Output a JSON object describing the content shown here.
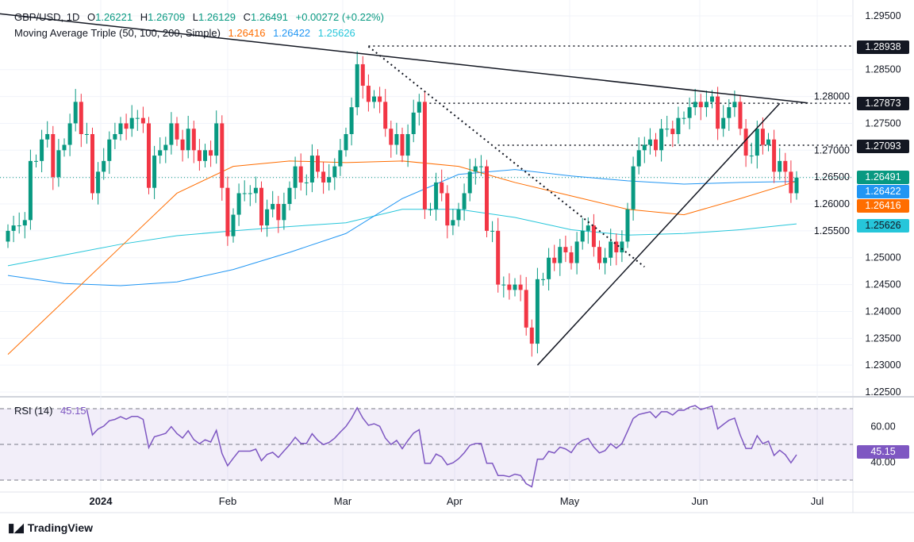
{
  "header": {
    "symbol": "GBP/USD, 1D",
    "o_label": "O",
    "o": "1.26221",
    "h_label": "H",
    "h": "1.26709",
    "l_label": "L",
    "l": "1.26129",
    "c_label": "C",
    "c": "1.26491",
    "change": "+0.00272 (+0.22%)"
  },
  "ma": {
    "title": "Moving Average Triple (50, 100, 200, Simple)",
    "v50": "1.26416",
    "v100": "1.26422",
    "v200": "1.25626",
    "c50": "#ff6d00",
    "c100": "#2196f3",
    "c200": "#26c6da"
  },
  "rsi": {
    "title": "RSI (14)",
    "value": "45.15",
    "color": "#7e57c2",
    "ticks": [
      "60.00",
      "40.00"
    ]
  },
  "price_axis": {
    "ticks": [
      "1.29500",
      "1.28500",
      "1.28000",
      "1.27500",
      "1.27000",
      "1.26500",
      "1.26000",
      "1.25500",
      "1.25000",
      "1.24500",
      "1.24000",
      "1.23500",
      "1.23000",
      "1.22500"
    ],
    "levels": {
      "l1": "1.28938",
      "l2": "1.27873",
      "l3": "1.27093"
    },
    "last": "1.26491"
  },
  "time_axis": [
    "2024",
    "Feb",
    "Mar",
    "Apr",
    "May",
    "Jun",
    "Jul"
  ],
  "colors": {
    "up": "#089981",
    "down": "#f23645"
  },
  "footer": {
    "brand": "TradingView"
  },
  "chart_data": {
    "type": "candlestick",
    "symbol": "GBP/USD",
    "interval": "1D",
    "ylim": [
      1.225,
      1.295
    ],
    "closes": [
      1.255,
      1.256,
      1.256,
      1.257,
      1.268,
      1.268,
      1.272,
      1.273,
      1.265,
      1.27,
      1.271,
      1.275,
      1.279,
      1.273,
      1.273,
      1.262,
      1.266,
      1.268,
      1.272,
      1.273,
      1.275,
      1.274,
      1.276,
      1.276,
      1.275,
      1.263,
      1.269,
      1.27,
      1.271,
      1.275,
      1.272,
      1.27,
      1.274,
      1.27,
      1.268,
      1.27,
      1.269,
      1.275,
      1.263,
      1.254,
      1.258,
      1.262,
      1.262,
      1.262,
      1.263,
      1.256,
      1.259,
      1.26,
      1.257,
      1.26,
      1.263,
      1.267,
      1.264,
      1.264,
      1.269,
      1.266,
      1.264,
      1.265,
      1.267,
      1.27,
      1.273,
      1.278,
      1.286,
      1.282,
      1.279,
      1.28,
      1.279,
      1.274,
      1.271,
      1.273,
      1.269,
      1.273,
      1.277,
      1.279,
      1.259,
      1.259,
      1.264,
      1.262,
      1.256,
      1.257,
      1.259,
      1.262,
      1.266,
      1.267,
      1.267,
      1.255,
      1.255,
      1.245,
      1.245,
      1.244,
      1.245,
      1.244,
      1.237,
      1.234,
      1.246,
      1.246,
      1.25,
      1.249,
      1.252,
      1.251,
      1.249,
      1.253,
      1.255,
      1.256,
      1.252,
      1.249,
      1.25,
      1.253,
      1.251,
      1.253,
      1.259,
      1.267,
      1.27,
      1.271,
      1.272,
      1.27,
      1.274,
      1.274,
      1.273,
      1.276,
      1.276,
      1.278,
      1.279,
      1.278,
      1.279,
      1.28,
      1.274,
      1.276,
      1.278,
      1.279,
      1.274,
      1.269,
      1.269,
      1.274,
      1.271,
      1.272,
      1.266,
      1.268,
      1.266,
      1.262,
      1.2649
    ],
    "ma50": [
      1.232,
      1.242,
      1.252,
      1.262,
      1.267,
      1.268,
      1.2677,
      1.268,
      1.267,
      1.264,
      1.2615,
      1.259,
      1.258,
      1.261,
      1.2642
    ],
    "ma100": [
      1.2467,
      1.2452,
      1.2448,
      1.2455,
      1.2478,
      1.251,
      1.2545,
      1.261,
      1.2655,
      1.2664,
      1.2652,
      1.2643,
      1.2637,
      1.264,
      1.2642
    ],
    "ma200": [
      1.2485,
      1.2505,
      1.2525,
      1.2541,
      1.255,
      1.2558,
      1.2565,
      1.259,
      1.259,
      1.2575,
      1.2552,
      1.2542,
      1.2545,
      1.2552,
      1.2563
    ],
    "trendlines": [
      {
        "style": "solid",
        "from": [
          -11,
          1.2965
        ],
        "to": [
          142,
          1.2788
        ]
      },
      {
        "style": "dotted",
        "from": [
          64,
          1.2893
        ],
        "to": [
          113,
          1.2483
        ]
      },
      {
        "style": "solid",
        "from": [
          94,
          1.23
        ],
        "to": [
          137,
          1.2787
        ]
      }
    ],
    "rsi_bands": [
      70,
      50,
      30
    ]
  }
}
